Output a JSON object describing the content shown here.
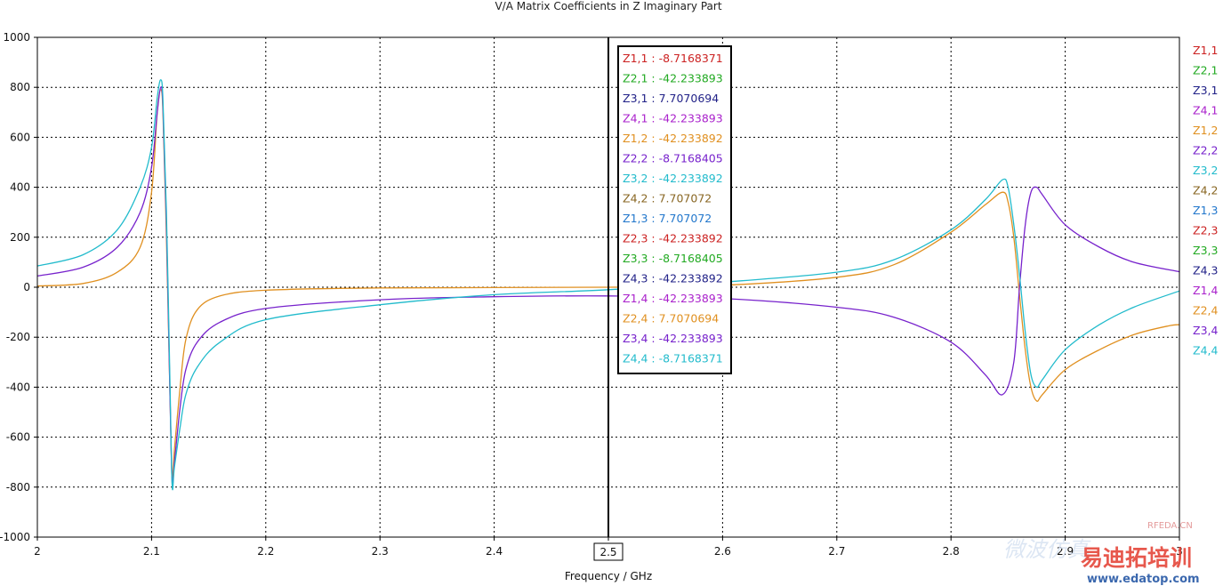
{
  "chart_data": {
    "type": "line",
    "title": "V/A Matrix Coefficients in Z Imaginary Part",
    "xlabel": "Frequency / GHz",
    "ylabel": "",
    "xlim": [
      2,
      3
    ],
    "ylim": [
      -1000,
      1000
    ],
    "x_ticks": [
      "2",
      "2.1",
      "2.2",
      "2.3",
      "2.4",
      "2.5",
      "2.6",
      "2.7",
      "2.8",
      "2.9",
      "3"
    ],
    "y_ticks": [
      "1000",
      "800",
      "600",
      "400",
      "200",
      "0",
      "-200",
      "-400",
      "-600",
      "-800",
      "-1000"
    ],
    "grid": true,
    "legend_position": "right",
    "marker_x": 2.5,
    "marker_x_label": "2.5",
    "series": [
      {
        "name": "Z1,1",
        "color": "#cc2222"
      },
      {
        "name": "Z2,1",
        "color": "#22aa22"
      },
      {
        "name": "Z3,1",
        "color": "#222288"
      },
      {
        "name": "Z4,1",
        "color": "#aa22cc"
      },
      {
        "name": "Z1,2",
        "color": "#e09020"
      },
      {
        "name": "Z2,2",
        "color": "#7722cc"
      },
      {
        "name": "Z3,2",
        "color": "#22bbcc"
      },
      {
        "name": "Z4,2",
        "color": "#886622"
      },
      {
        "name": "Z1,3",
        "color": "#2277cc"
      },
      {
        "name": "Z2,3",
        "color": "#cc2222"
      },
      {
        "name": "Z3,3",
        "color": "#22aa22"
      },
      {
        "name": "Z4,3",
        "color": "#222288"
      },
      {
        "name": "Z1,4",
        "color": "#aa22cc"
      },
      {
        "name": "Z2,4",
        "color": "#e09020"
      },
      {
        "name": "Z3,4",
        "color": "#7722cc"
      },
      {
        "name": "Z4,4",
        "color": "#22bbcc"
      }
    ],
    "visible_curves": [
      {
        "color": "#e09020",
        "points": [
          [
            2.0,
            5
          ],
          [
            2.04,
            15
          ],
          [
            2.07,
            60
          ],
          [
            2.09,
            160
          ],
          [
            2.1,
            380
          ],
          [
            2.105,
            700
          ],
          [
            2.108,
            790
          ],
          [
            2.11,
            700
          ],
          [
            2.113,
            200
          ],
          [
            2.116,
            -400
          ],
          [
            2.118,
            -760
          ],
          [
            2.12,
            -650
          ],
          [
            2.125,
            -400
          ],
          [
            2.13,
            -210
          ],
          [
            2.14,
            -90
          ],
          [
            2.16,
            -35
          ],
          [
            2.2,
            -12
          ],
          [
            2.3,
            -3
          ],
          [
            2.5,
            0
          ],
          [
            2.6,
            8
          ],
          [
            2.7,
            40
          ],
          [
            2.75,
            90
          ],
          [
            2.8,
            220
          ],
          [
            2.83,
            330
          ],
          [
            2.845,
            380
          ],
          [
            2.85,
            340
          ],
          [
            2.855,
            200
          ],
          [
            2.86,
            -30
          ],
          [
            2.865,
            -250
          ],
          [
            2.87,
            -400
          ],
          [
            2.875,
            -455
          ],
          [
            2.88,
            -430
          ],
          [
            2.9,
            -330
          ],
          [
            2.93,
            -250
          ],
          [
            2.96,
            -190
          ],
          [
            2.99,
            -155
          ],
          [
            3.0,
            -150
          ]
        ]
      },
      {
        "color": "#7722cc",
        "points": [
          [
            2.0,
            45
          ],
          [
            2.04,
            80
          ],
          [
            2.07,
            160
          ],
          [
            2.09,
            300
          ],
          [
            2.1,
            480
          ],
          [
            2.105,
            700
          ],
          [
            2.108,
            800
          ],
          [
            2.11,
            720
          ],
          [
            2.113,
            250
          ],
          [
            2.116,
            -400
          ],
          [
            2.118,
            -780
          ],
          [
            2.12,
            -700
          ],
          [
            2.125,
            -480
          ],
          [
            2.13,
            -330
          ],
          [
            2.14,
            -220
          ],
          [
            2.16,
            -140
          ],
          [
            2.2,
            -85
          ],
          [
            2.3,
            -50
          ],
          [
            2.4,
            -38
          ],
          [
            2.5,
            -35
          ],
          [
            2.6,
            -45
          ],
          [
            2.7,
            -80
          ],
          [
            2.75,
            -120
          ],
          [
            2.8,
            -220
          ],
          [
            2.83,
            -350
          ],
          [
            2.845,
            -430
          ],
          [
            2.855,
            -300
          ],
          [
            2.86,
            0
          ],
          [
            2.865,
            250
          ],
          [
            2.87,
            380
          ],
          [
            2.875,
            400
          ],
          [
            2.88,
            370
          ],
          [
            2.9,
            250
          ],
          [
            2.93,
            160
          ],
          [
            2.96,
            100
          ],
          [
            3.0,
            62
          ]
        ]
      },
      {
        "color": "#22bbcc",
        "points": [
          [
            2.0,
            85
          ],
          [
            2.04,
            130
          ],
          [
            2.07,
            230
          ],
          [
            2.09,
            400
          ],
          [
            2.1,
            560
          ],
          [
            2.105,
            760
          ],
          [
            2.108,
            830
          ],
          [
            2.11,
            750
          ],
          [
            2.113,
            300
          ],
          [
            2.116,
            -350
          ],
          [
            2.118,
            -790
          ],
          [
            2.12,
            -720
          ],
          [
            2.125,
            -560
          ],
          [
            2.13,
            -430
          ],
          [
            2.14,
            -320
          ],
          [
            2.16,
            -220
          ],
          [
            2.2,
            -130
          ],
          [
            2.3,
            -70
          ],
          [
            2.4,
            -30
          ],
          [
            2.5,
            -10
          ],
          [
            2.6,
            20
          ],
          [
            2.7,
            60
          ],
          [
            2.75,
            110
          ],
          [
            2.8,
            230
          ],
          [
            2.83,
            350
          ],
          [
            2.845,
            430
          ],
          [
            2.85,
            400
          ],
          [
            2.855,
            250
          ],
          [
            2.86,
            50
          ],
          [
            2.865,
            -180
          ],
          [
            2.87,
            -350
          ],
          [
            2.875,
            -400
          ],
          [
            2.88,
            -370
          ],
          [
            2.9,
            -250
          ],
          [
            2.93,
            -150
          ],
          [
            2.96,
            -80
          ],
          [
            3.0,
            -15
          ]
        ]
      }
    ]
  },
  "readout": [
    {
      "label": "Z1,1 : -8.7168371",
      "color": "#cc2222"
    },
    {
      "label": "Z2,1 : -42.233893",
      "color": "#22aa22"
    },
    {
      "label": "Z3,1 : 7.7070694",
      "color": "#222288"
    },
    {
      "label": "Z4,1 : -42.233893",
      "color": "#aa22cc"
    },
    {
      "label": "Z1,2 : -42.233892",
      "color": "#e09020"
    },
    {
      "label": "Z2,2 : -8.7168405",
      "color": "#7722cc"
    },
    {
      "label": "Z3,2 : -42.233892",
      "color": "#22bbcc"
    },
    {
      "label": "Z4,2 : 7.707072",
      "color": "#886622"
    },
    {
      "label": "Z1,3 : 7.707072",
      "color": "#2277cc"
    },
    {
      "label": "Z2,3 : -42.233892",
      "color": "#cc2222"
    },
    {
      "label": "Z3,3 : -8.7168405",
      "color": "#22aa22"
    },
    {
      "label": "Z4,3 : -42.233892",
      "color": "#222288"
    },
    {
      "label": "Z1,4 : -42.233893",
      "color": "#aa22cc"
    },
    {
      "label": "Z2,4 : 7.7070694",
      "color": "#e09020"
    },
    {
      "label": "Z3,4 : -42.233893",
      "color": "#7722cc"
    },
    {
      "label": "Z4,4 : -8.7168371",
      "color": "#22bbcc"
    }
  ],
  "watermark": {
    "line1": "RFEDA.CN",
    "line2": "易迪拓培训",
    "line3": "www.edatop.com",
    "faint": "微波仿真"
  }
}
